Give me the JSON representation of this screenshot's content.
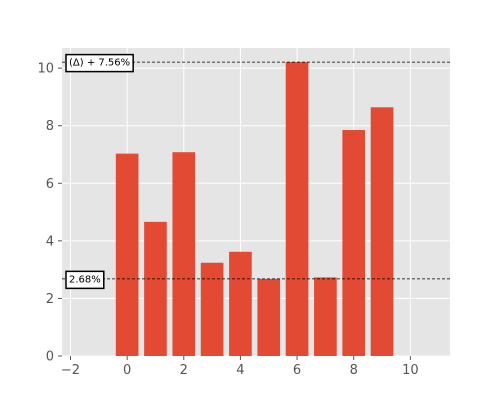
{
  "chart_data": {
    "type": "bar",
    "x": [
      0,
      1,
      2,
      3,
      4,
      5,
      6,
      7,
      8,
      9
    ],
    "values": [
      7.03,
      4.66,
      7.08,
      3.24,
      3.62,
      2.68,
      10.21,
      2.73,
      7.85,
      8.64
    ],
    "bar_color": "#E24A33",
    "background_color": "#E5E5E5",
    "grid": true,
    "xlim": [
      -2.3,
      11.4
    ],
    "ylim": [
      0,
      10.7
    ],
    "xticks": [
      -2,
      0,
      2,
      4,
      6,
      8,
      10
    ],
    "yticks": [
      0,
      2,
      4,
      6,
      8,
      10
    ],
    "xtick_labels": [
      "−2",
      "0",
      "2",
      "4",
      "6",
      "8",
      "10"
    ],
    "ytick_labels": [
      "0",
      "2",
      "4",
      "6",
      "8",
      "10"
    ],
    "reference_lines": [
      {
        "y": 10.21,
        "label": "(Δ) + 7.56%"
      },
      {
        "y": 2.68,
        "label": "2.68%"
      }
    ]
  }
}
